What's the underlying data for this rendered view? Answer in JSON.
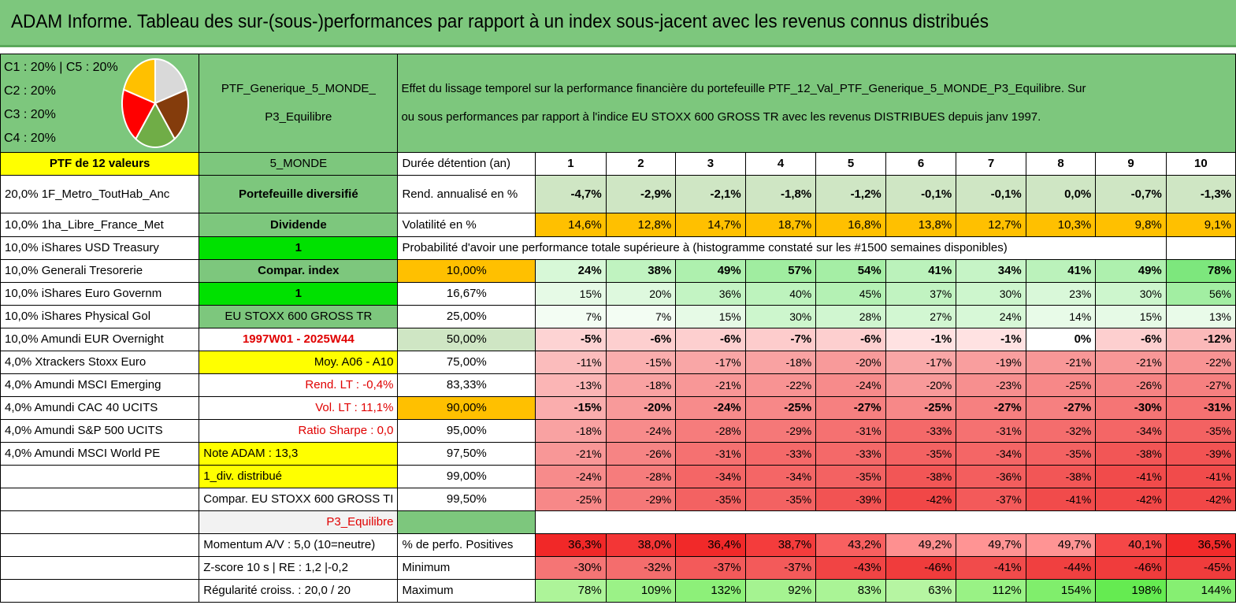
{
  "header": {
    "title": "ADAM Informe. Tableau des sur-(sous-)performances par rapport à un index sous-jacent avec les revenus connus distribués"
  },
  "pie": {
    "labels": [
      "C1 : 20% | C5 : 20%",
      "C2 : 20%",
      "C3 : 20%",
      "C4 : 20%"
    ],
    "slices": [
      {
        "name": "C1",
        "value": 20,
        "color": "#ffc000"
      },
      {
        "name": "C2",
        "value": 20,
        "color": "#ff0000"
      },
      {
        "name": "C3",
        "value": 20,
        "color": "#70ad47"
      },
      {
        "name": "C4",
        "value": 20,
        "color": "#843c0c"
      },
      {
        "name": "C5",
        "value": 20,
        "color": "#d9d9d9"
      }
    ]
  },
  "portfolio": {
    "name_line1": "PTF_Generique_5_MONDE_",
    "name_line2": "P3_Equilibre",
    "description_line1": "Effet du lissage temporel sur la performance financière du portefeuille PTF_12_Val_PTF_Generique_5_MONDE_P3_Equilibre. Sur",
    "description_line2": "ou sous performances par rapport à l'indice EU STOXX 600 GROSS TR avec les revenus DISTRIBUES depuis janv 1997.",
    "count_label": "PTF de 12 valeurs",
    "zone": "5_MONDE"
  },
  "holdings": [
    "20,0% 1F_Metro_ToutHab_Anc",
    "10,0% 1ha_Libre_France_Met",
    "10,0% iShares USD Treasury",
    "10,0% Generali Tresorerie",
    "10,0% iShares Euro Governm",
    "10,0% iShares Physical Gol",
    "10,0% Amundi EUR Overnight",
    "4,0% Xtrackers Stoxx Euro",
    "4,0% Amundi MSCI Emerging",
    "4,0% Amundi CAC 40 UCITS",
    "4,0% Amundi S&P 500 UCITS",
    "4,0% Amundi MSCI World PE"
  ],
  "info": {
    "diversified": "Portefeuille diversifié",
    "dividend": "Dividende",
    "one_a": "1",
    "compar_index": "Compar. index",
    "one_b": "1",
    "index_name": "EU STOXX 600 GROSS TR",
    "period": "1997W01 - 2025W44",
    "moy": "Moy. A06 - A10",
    "rend_lt": "Rend. LT : -0,4%",
    "vol_lt": "Vol. LT : 11,1%",
    "sharpe": "Ratio Sharpe : 0,0",
    "note": "Note ADAM : 13,3",
    "div_distrib": "1_div. distribué",
    "compar_name": "Compar. EU STOXX 600 GROSS TI",
    "profile": "P3_Equilibre",
    "momentum": "Momentum A/V : 5,0 (10=neutre)",
    "zscore": "Z-score 10 s | RE : 1,2 |-0,2",
    "regularite": "Régularité croiss. : 20,0 / 20"
  },
  "metrics": {
    "duration_label": "Durée détention (an)",
    "years": [
      "1",
      "2",
      "3",
      "4",
      "5",
      "6",
      "7",
      "8",
      "9",
      "10"
    ],
    "rend_label": "Rend. annualisé en %",
    "rend": [
      "-4,7%",
      "-2,9%",
      "-2,1%",
      "-1,8%",
      "-1,2%",
      "-0,1%",
      "-0,1%",
      "0,0%",
      "-0,7%",
      "-1,3%"
    ],
    "vol_label": "Volatilité en %",
    "vol": [
      "14,6%",
      "12,8%",
      "14,7%",
      "18,7%",
      "16,8%",
      "13,8%",
      "12,7%",
      "10,3%",
      "9,8%",
      "9,1%"
    ],
    "prob_label": "Probabilité d'avoir une performance totale supérieure à (histogramme constaté sur les #1500 semaines disponibles)"
  },
  "probability_rows": [
    {
      "threshold": "10,00%",
      "values": [
        "24%",
        "38%",
        "49%",
        "57%",
        "54%",
        "41%",
        "34%",
        "41%",
        "49%",
        "78%"
      ]
    },
    {
      "threshold": "16,67%",
      "values": [
        "15%",
        "20%",
        "36%",
        "40%",
        "45%",
        "37%",
        "30%",
        "23%",
        "30%",
        "56%"
      ]
    },
    {
      "threshold": "25,00%",
      "values": [
        "7%",
        "7%",
        "15%",
        "30%",
        "28%",
        "27%",
        "24%",
        "14%",
        "15%",
        "13%"
      ]
    },
    {
      "threshold": "50,00%",
      "values": [
        "-5%",
        "-6%",
        "-6%",
        "-7%",
        "-6%",
        "-1%",
        "-1%",
        "0%",
        "-6%",
        "-12%"
      ]
    },
    {
      "threshold": "75,00%",
      "values": [
        "-11%",
        "-15%",
        "-17%",
        "-18%",
        "-20%",
        "-17%",
        "-19%",
        "-21%",
        "-21%",
        "-22%"
      ]
    },
    {
      "threshold": "83,33%",
      "values": [
        "-13%",
        "-18%",
        "-21%",
        "-22%",
        "-24%",
        "-20%",
        "-23%",
        "-25%",
        "-26%",
        "-27%"
      ]
    },
    {
      "threshold": "90,00%",
      "values": [
        "-15%",
        "-20%",
        "-24%",
        "-25%",
        "-27%",
        "-25%",
        "-27%",
        "-27%",
        "-30%",
        "-31%"
      ]
    },
    {
      "threshold": "95,00%",
      "values": [
        "-18%",
        "-24%",
        "-28%",
        "-29%",
        "-31%",
        "-33%",
        "-31%",
        "-32%",
        "-34%",
        "-35%"
      ]
    },
    {
      "threshold": "97,50%",
      "values": [
        "-21%",
        "-26%",
        "-31%",
        "-33%",
        "-33%",
        "-35%",
        "-34%",
        "-35%",
        "-38%",
        "-39%"
      ]
    },
    {
      "threshold": "99,00%",
      "values": [
        "-24%",
        "-28%",
        "-34%",
        "-34%",
        "-35%",
        "-38%",
        "-36%",
        "-38%",
        "-41%",
        "-41%"
      ]
    },
    {
      "threshold": "99,50%",
      "values": [
        "-25%",
        "-29%",
        "-35%",
        "-35%",
        "-39%",
        "-42%",
        "-37%",
        "-41%",
        "-42%",
        "-42%"
      ]
    }
  ],
  "summary": {
    "positives_label": "% de perfo. Positives",
    "positives": [
      "36,3%",
      "38,0%",
      "36,4%",
      "38,7%",
      "43,2%",
      "49,2%",
      "49,7%",
      "49,7%",
      "40,1%",
      "36,5%"
    ],
    "min_label": "Minimum",
    "min": [
      "-30%",
      "-32%",
      "-37%",
      "-37%",
      "-43%",
      "-46%",
      "-41%",
      "-44%",
      "-46%",
      "-45%"
    ],
    "max_label": "Maximum",
    "max": [
      "78%",
      "109%",
      "132%",
      "92%",
      "83%",
      "63%",
      "112%",
      "154%",
      "198%",
      "144%"
    ]
  }
}
